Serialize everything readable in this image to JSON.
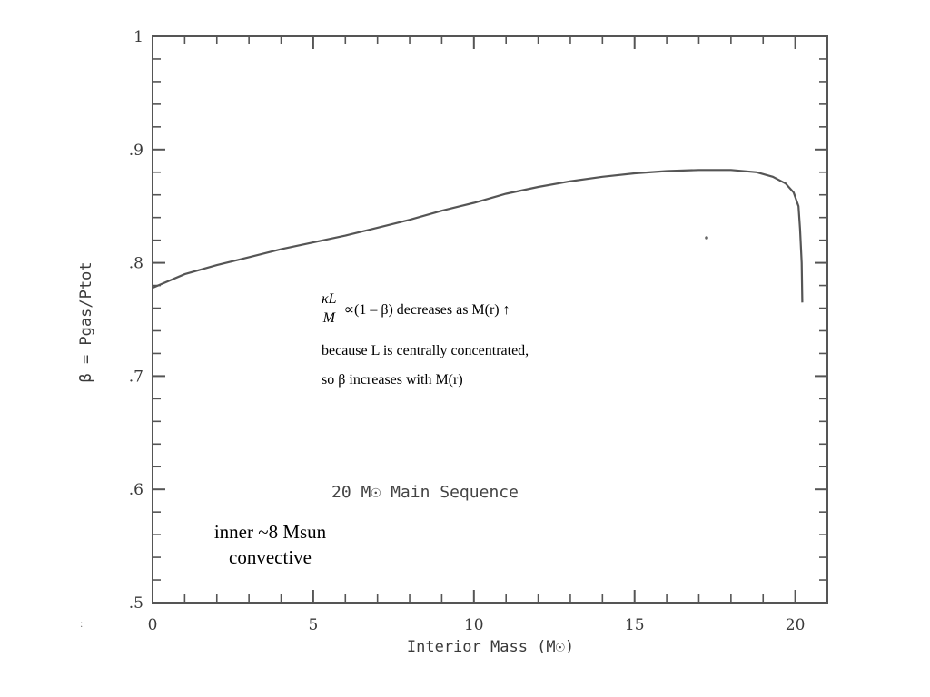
{
  "chart_data": {
    "type": "line",
    "title": "",
    "inner_label": "20 M☉ Main Sequence",
    "xlabel": "Interior Mass (M☉)",
    "ylabel": "β = Pgas/Ptot",
    "xlim": [
      0,
      21
    ],
    "ylim": [
      0.5,
      1.0
    ],
    "x_ticks": [
      0,
      5,
      10,
      15,
      20
    ],
    "x_tick_labels": [
      "0",
      "5",
      "10",
      "15",
      "20"
    ],
    "y_ticks": [
      0.5,
      0.6,
      0.7,
      0.8,
      0.9,
      1.0
    ],
    "y_tick_labels": [
      ".5",
      ".6",
      ".7",
      ".8",
      ".9",
      "1"
    ],
    "grid": false,
    "series": [
      {
        "x": [
          0,
          1,
          2,
          3,
          4,
          5,
          6,
          7,
          8,
          9,
          10,
          11,
          12,
          13,
          14,
          15,
          16,
          17,
          18,
          18.8,
          19.3,
          19.7,
          19.95,
          20.1,
          20.15,
          20.2,
          20.22
        ],
        "y": [
          0.778,
          0.79,
          0.798,
          0.805,
          0.812,
          0.818,
          0.824,
          0.831,
          0.838,
          0.846,
          0.853,
          0.861,
          0.867,
          0.872,
          0.876,
          0.879,
          0.881,
          0.882,
          0.882,
          0.88,
          0.876,
          0.87,
          0.862,
          0.85,
          0.83,
          0.8,
          0.765
        ]
      }
    ]
  },
  "annotations": {
    "eq_numerator": "κL",
    "eq_denominator": "M",
    "eq_rest": "∝(1 – β)  decreases as M(r) ↑",
    "line2": "because L is centrally concentrated,",
    "line3": "so β increases with M(r)",
    "inner_line1": "inner ~8 Msun",
    "inner_line2": "convective",
    "stray_mark": ":"
  }
}
